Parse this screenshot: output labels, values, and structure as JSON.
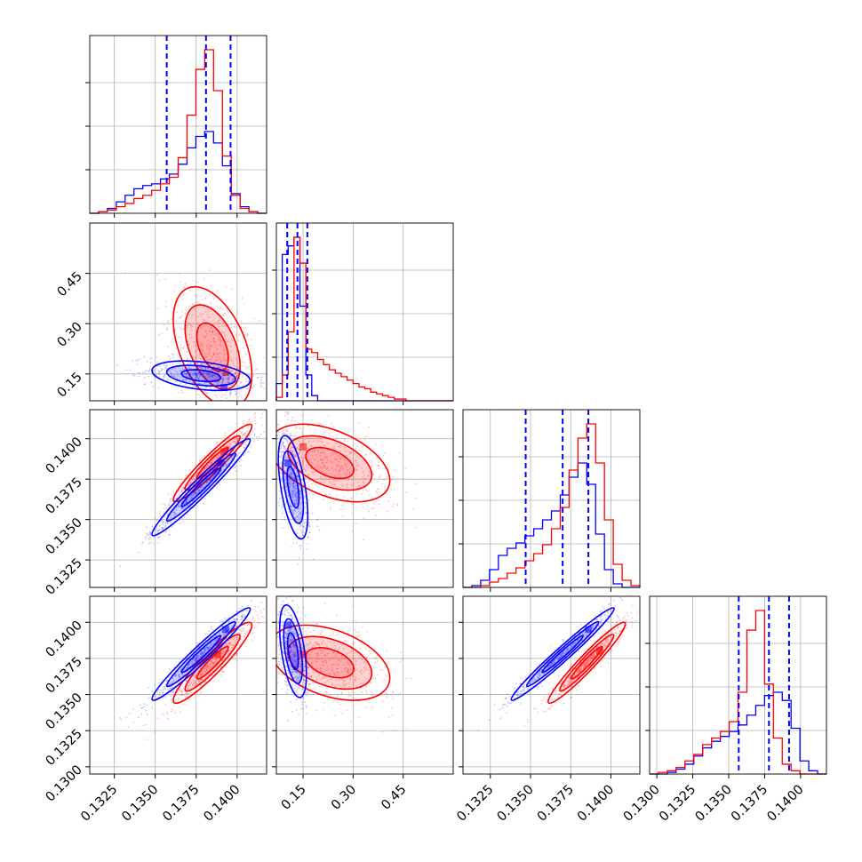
{
  "chart_data": {
    "type": "corner",
    "description_of_parameters": "4-parameter corner plot (histograms on diagonal, 2D density contours off-diagonal), two overlaid sample sets",
    "grid": true,
    "series": [
      {
        "color": "#0000ff"
      },
      {
        "color": "#ff0000"
      }
    ],
    "params": [
      {
        "range": [
          0.131,
          0.1418
        ],
        "ticks": [
          0.1325,
          0.135,
          0.1375,
          0.14
        ],
        "tick_labels": [
          "0.1325",
          "0.1350",
          "0.1375",
          "0.1400"
        ]
      },
      {
        "range": [
          0.07,
          0.6
        ],
        "ticks": [
          0.15,
          0.3,
          0.45
        ],
        "tick_labels": [
          "0.15",
          "0.30",
          "0.45"
        ]
      },
      {
        "range": [
          0.1308,
          0.1418
        ],
        "ticks": [
          0.1325,
          0.135,
          0.1375,
          0.14
        ],
        "tick_labels": [
          "0.1325",
          "0.1350",
          "0.1375",
          "0.1400"
        ]
      },
      {
        "range": [
          0.1295,
          0.1418
        ],
        "ticks": [
          0.13,
          0.1325,
          0.135,
          0.1375,
          0.14
        ],
        "tick_labels": [
          "0.1300",
          "0.1325",
          "0.1350",
          "0.1375",
          "0.1400"
        ]
      }
    ],
    "row_tick_labels": [
      {
        "row": 1,
        "tick_labels": [
          "0.15",
          "0.30",
          "0.45"
        ]
      },
      {
        "row": 2,
        "tick_labels": [
          "0.1325",
          "0.1350",
          "0.1375",
          "0.1400"
        ]
      },
      {
        "row": 3,
        "tick_labels": [
          "0.1300",
          "0.1325",
          "0.1350",
          "0.1375",
          "0.1400"
        ]
      }
    ],
    "diagonal_histograms": [
      {
        "param": 0,
        "bins": [
          0.131,
          0.1418,
          20
        ],
        "blue": [
          0,
          1,
          3,
          7,
          11,
          15,
          17,
          18,
          21,
          24,
          30,
          40,
          47,
          50,
          43,
          29,
          12,
          4,
          1,
          0
        ],
        "red": [
          0,
          1,
          2,
          4,
          6,
          9,
          11,
          14,
          18,
          22,
          34,
          60,
          88,
          100,
          75,
          35,
          11,
          3,
          1,
          0
        ],
        "quantiles_blue": [
          0.1357,
          0.1381,
          0.1396
        ]
      },
      {
        "param": 1,
        "bins": [
          0.07,
          0.6,
          30
        ],
        "blue": [
          10,
          85,
          90,
          95,
          55,
          15,
          3,
          0,
          0,
          0,
          0,
          0,
          0,
          0,
          0,
          0,
          0,
          0,
          0,
          0,
          0,
          0,
          0,
          0,
          0,
          0,
          0,
          0,
          0,
          0
        ],
        "red": [
          2,
          15,
          40,
          95,
          80,
          30,
          28,
          24,
          21,
          18,
          16,
          14,
          12,
          10,
          8,
          7,
          5,
          4,
          3,
          2,
          1,
          1,
          0,
          0,
          0,
          0,
          0,
          0,
          0,
          0
        ],
        "quantiles_blue": [
          0.1025,
          0.1331,
          0.1628
        ]
      },
      {
        "param": 2,
        "bins": [
          0.1308,
          0.1418,
          20
        ],
        "blue": [
          0,
          1,
          4,
          10,
          18,
          22,
          25,
          29,
          33,
          38,
          43,
          52,
          62,
          70,
          58,
          30,
          10,
          2,
          0,
          0
        ],
        "red": [
          0,
          0,
          1,
          3,
          5,
          8,
          11,
          15,
          19,
          24,
          33,
          45,
          66,
          84,
          92,
          70,
          38,
          13,
          4,
          1
        ],
        "quantiles_blue": [
          0.1347,
          0.137,
          0.1386
        ]
      },
      {
        "param": 3,
        "bins": [
          0.1295,
          0.1418,
          20
        ],
        "blue": [
          0,
          0,
          1,
          3,
          6,
          11,
          16,
          20,
          23,
          26,
          30,
          36,
          42,
          48,
          50,
          45,
          28,
          8,
          2,
          0
        ],
        "red": [
          0,
          1,
          2,
          4,
          8,
          12,
          18,
          22,
          26,
          32,
          50,
          88,
          100,
          55,
          22,
          6,
          2,
          0,
          0,
          0
        ],
        "quantiles_blue": [
          0.1357,
          0.1378,
          0.1392
        ]
      }
    ],
    "pair_panels": [
      {
        "x_param": 0,
        "y_param": 1,
        "blue": {
          "center": [
            0.1378,
            0.145
          ],
          "sx": 0.0015,
          "sy": 0.022,
          "rho": -0.35,
          "peak": [
            0.1392,
            0.11
          ]
        },
        "red": {
          "center": [
            0.1385,
            0.23
          ],
          "sx": 0.0012,
          "sy": 0.09,
          "rho": -0.45,
          "peak": [
            0.1393,
            0.155
          ]
        }
      },
      {
        "x_param": 0,
        "y_param": 2,
        "blue": {
          "center": [
            0.1378,
            0.137
          ],
          "sx": 0.0015,
          "sy": 0.0015,
          "rho": 0.97,
          "peak": [
            0.139,
            0.1385
          ]
        },
        "red": {
          "center": [
            0.1385,
            0.1385
          ],
          "sx": 0.0012,
          "sy": 0.0012,
          "rho": 0.95,
          "peak": [
            0.1392,
            0.1392
          ]
        }
      },
      {
        "x_param": 0,
        "y_param": 3,
        "blue": {
          "center": [
            0.1378,
            0.1378
          ],
          "sx": 0.0015,
          "sy": 0.0016,
          "rho": 0.97,
          "peak": [
            0.1393,
            0.1395
          ]
        },
        "red": {
          "center": [
            0.1385,
            0.1372
          ],
          "sx": 0.0012,
          "sy": 0.0014,
          "rho": 0.93,
          "peak": [
            0.1388,
            0.1378
          ]
        }
      },
      {
        "x_param": 1,
        "y_param": 2,
        "blue": {
          "center": [
            0.12,
            0.137
          ],
          "sx": 0.022,
          "sy": 0.0016,
          "rho": -0.55,
          "peak": [
            0.105,
            0.1385
          ]
        },
        "red": {
          "center": [
            0.23,
            0.1385
          ],
          "sx": 0.09,
          "sy": 0.0012,
          "rho": -0.45,
          "peak": [
            0.15,
            0.1395
          ]
        }
      },
      {
        "x_param": 1,
        "y_param": 3,
        "blue": {
          "center": [
            0.12,
            0.138
          ],
          "sx": 0.02,
          "sy": 0.0016,
          "rho": -0.5,
          "peak": [
            0.105,
            0.1398
          ]
        },
        "red": {
          "center": [
            0.23,
            0.1372
          ],
          "sx": 0.09,
          "sy": 0.0013,
          "rho": -0.4,
          "peak": [
            0.15,
            0.1378
          ]
        }
      },
      {
        "x_param": 2,
        "y_param": 3,
        "blue": {
          "center": [
            0.137,
            0.1378
          ],
          "sx": 0.0016,
          "sy": 0.0016,
          "rho": 0.98,
          "peak": [
            0.1386,
            0.1395
          ]
        },
        "red": {
          "center": [
            0.1385,
            0.1372
          ],
          "sx": 0.0012,
          "sy": 0.0014,
          "rho": 0.96,
          "peak": [
            0.1393,
            0.138
          ]
        }
      }
    ]
  }
}
